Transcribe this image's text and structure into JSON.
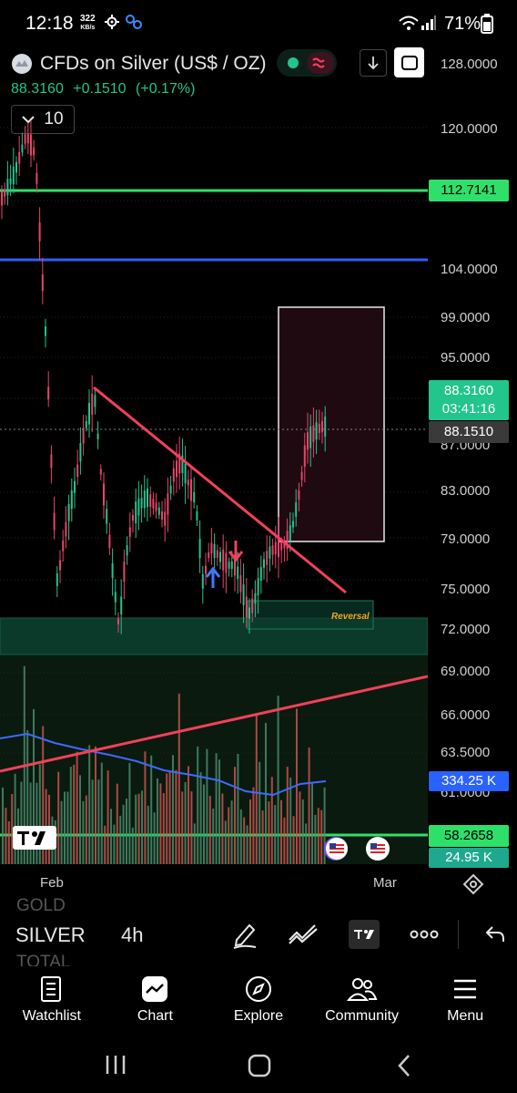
{
  "status_bar": {
    "time": "12:18",
    "speed_value": "322",
    "speed_unit": "KB/s",
    "battery": "71%"
  },
  "header": {
    "symbol_title": "CFDs on Silver (US$ / OZ)",
    "last_price": "88.3160",
    "change": "+0.1510",
    "change_pct": "(+0.17%)",
    "interval_value": "10"
  },
  "price_axis": {
    "ticks": [
      "128.0000",
      "120.0000",
      "104.0000",
      "99.0000",
      "95.0000",
      "87.0000",
      "83.0000",
      "79.0000",
      "75.0000",
      "72.0000",
      "69.0000",
      "66.0000",
      "63.5000",
      "61.0000"
    ],
    "labels": {
      "green_line": "112.7141",
      "last_price": "88.3160",
      "countdown": "03:41:16",
      "prev": "88.1510",
      "volume_avg": "334.25 K",
      "level_low": "58.2658",
      "volume": "24.95 K"
    }
  },
  "chart": {
    "reversal_label": "Reversal"
  },
  "time_axis": {
    "labels": [
      "Feb",
      "Mar"
    ]
  },
  "symbol_strip": {
    "prev_symbol": "GOLD",
    "current_symbol": "SILVER",
    "next_symbol": "TOTAL",
    "timeframe": "4h"
  },
  "bottom_nav": {
    "items": [
      {
        "label": "Watchlist",
        "icon": "watchlist-icon"
      },
      {
        "label": "Chart",
        "icon": "chart-icon"
      },
      {
        "label": "Explore",
        "icon": "compass-icon"
      },
      {
        "label": "Community",
        "icon": "community-icon"
      },
      {
        "label": "Menu",
        "icon": "menu-icon"
      }
    ]
  },
  "colors": {
    "accent_green": "#22c58b",
    "line_green": "#2ee06a",
    "line_blue": "#2f5bff",
    "trend_red": "#f2405b",
    "volume_blue": "#2962ff"
  }
}
